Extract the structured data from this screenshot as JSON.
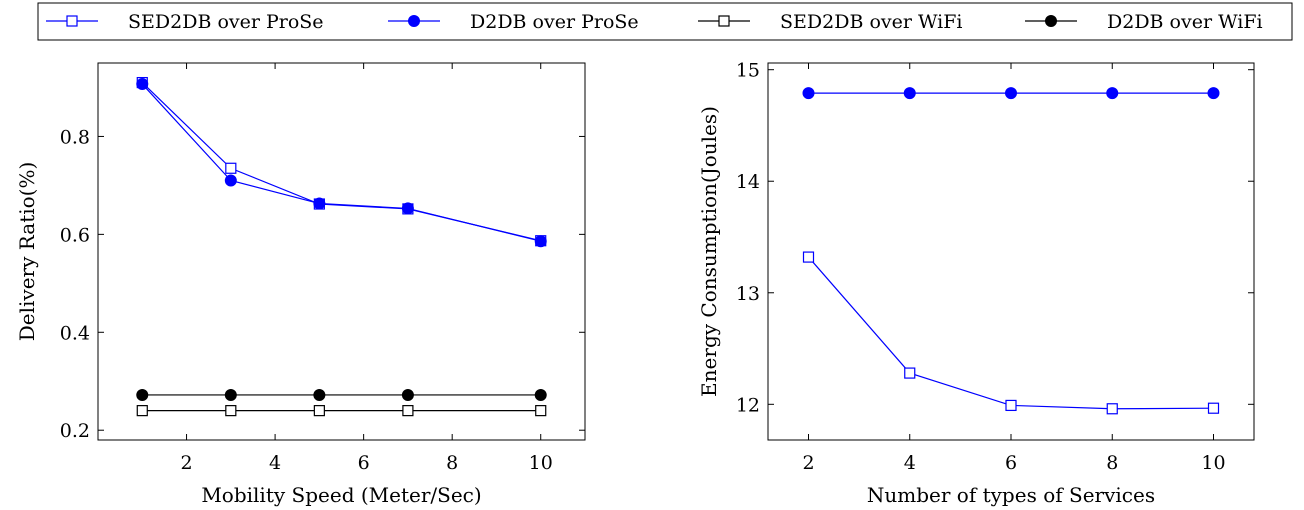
{
  "legend": {
    "entries": [
      {
        "label": "SED2DB over ProSe",
        "color": "#0000ff",
        "marker": "square-open"
      },
      {
        "label": "D2DB over ProSe",
        "color": "#0000ff",
        "marker": "circle-filled"
      },
      {
        "label": "SED2DB over WiFi",
        "color": "#000000",
        "marker": "square-open"
      },
      {
        "label": "D2DB over WiFi",
        "color": "#000000",
        "marker": "circle-filled"
      }
    ]
  },
  "chart_data": [
    {
      "type": "line",
      "title": "",
      "xlabel": "Mobility Speed (Meter/Sec)",
      "ylabel": "Delivery Ratio(%)",
      "xlim": [
        0.0,
        11.0
      ],
      "ylim": [
        0.18,
        0.95
      ],
      "xticks": [
        2,
        4,
        6,
        8,
        10
      ],
      "yticks": [
        0.2,
        0.4,
        0.6,
        0.8
      ],
      "ytick_labels": [
        "0.2",
        "0.4",
        "0.6",
        "0.8"
      ],
      "grid": false,
      "x": [
        1,
        3,
        5,
        7,
        10
      ],
      "series": [
        {
          "name": "SED2DB over ProSe",
          "color": "#0000ff",
          "marker": "square-open",
          "values": [
            0.91,
            0.735,
            0.662,
            0.652,
            0.587
          ]
        },
        {
          "name": "D2DB over ProSe",
          "color": "#0000ff",
          "marker": "circle-filled",
          "values": [
            0.907,
            0.71,
            0.663,
            0.653,
            0.586
          ]
        },
        {
          "name": "SED2DB over WiFi",
          "color": "#000000",
          "marker": "square-open",
          "values": [
            0.24,
            0.24,
            0.24,
            0.24,
            0.24
          ]
        },
        {
          "name": "D2DB over WiFi",
          "color": "#000000",
          "marker": "circle-filled",
          "values": [
            0.272,
            0.272,
            0.272,
            0.272,
            0.272
          ]
        }
      ]
    },
    {
      "type": "line",
      "title": "",
      "xlabel": "Number of types of Services",
      "ylabel": "Energy Consumption(Joules)",
      "xlim": [
        1.2,
        10.8
      ],
      "ylim": [
        11.68,
        15.06
      ],
      "xticks": [
        2,
        4,
        6,
        8,
        10
      ],
      "yticks": [
        12,
        13,
        14,
        15
      ],
      "ytick_labels": [
        "12",
        "13",
        "14",
        "15"
      ],
      "grid": false,
      "x": [
        2,
        4,
        6,
        8,
        10
      ],
      "series": [
        {
          "name": "D2DB over ProSe",
          "color": "#0000ff",
          "marker": "circle-filled",
          "values": [
            14.79,
            14.79,
            14.79,
            14.79,
            14.79
          ]
        },
        {
          "name": "SED2DB over ProSe",
          "color": "#0000ff",
          "marker": "square-open",
          "values": [
            13.32,
            12.28,
            11.99,
            11.96,
            11.965
          ]
        }
      ]
    }
  ]
}
